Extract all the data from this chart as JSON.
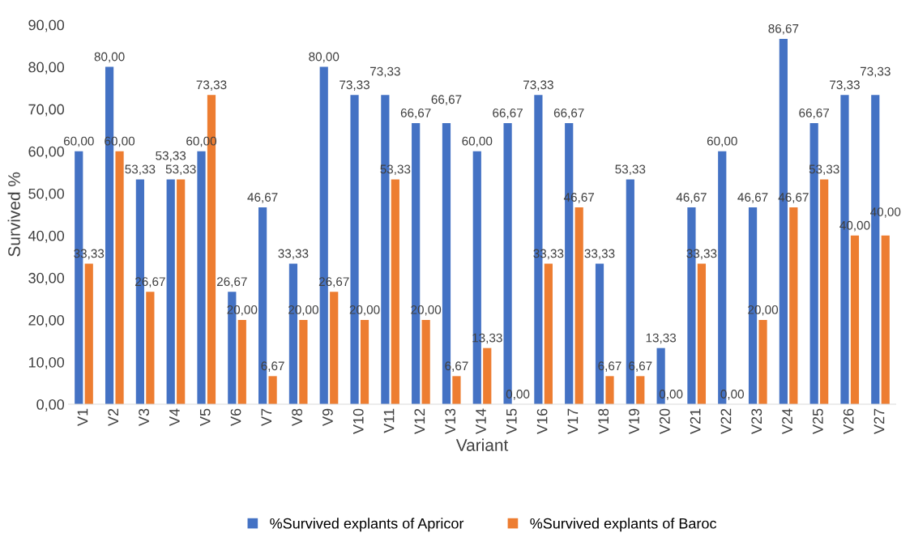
{
  "chart_data": {
    "type": "bar",
    "xlabel": "Variant",
    "ylabel": "Survived %",
    "categories": [
      "V1",
      "V2",
      "V3",
      "V4",
      "V5",
      "V6",
      "V7",
      "V8",
      "V9",
      "V10",
      "V11",
      "V12",
      "V13",
      "V14",
      "V15",
      "V16",
      "V17",
      "V18",
      "V19",
      "V20",
      "V21",
      "V22",
      "V23",
      "V24",
      "V25",
      "V26",
      "V27"
    ],
    "series": [
      {
        "name": "%Survived explants of Apricor",
        "color": "#4472c4",
        "values": [
          60,
          80,
          53.33,
          53.33,
          60,
          26.67,
          46.67,
          33.33,
          80,
          73.33,
          73.33,
          66.67,
          66.67,
          60,
          66.67,
          73.33,
          66.67,
          33.33,
          53.33,
          13.33,
          46.67,
          60,
          46.67,
          86.67,
          66.67,
          73.33,
          73.33
        ],
        "value_labels": [
          "60,00",
          "80,00",
          "53,33",
          "53,33",
          "60,00",
          "26,67",
          "46,67",
          "33,33",
          "80,00",
          "73,33",
          "73,33",
          "66,67",
          "66,67",
          "60,00",
          "66,67",
          "73,33",
          "66,67",
          "33,33",
          "53,33",
          "13,33",
          "46,67",
          "60,00",
          "46,67",
          "86,67",
          "66,67",
          "73,33",
          "73,33"
        ]
      },
      {
        "name": "%Survived explants of Baroc",
        "color": "#ed7d31",
        "values": [
          33.33,
          60,
          26.67,
          53.33,
          73.33,
          20,
          6.67,
          20,
          26.67,
          20,
          53.33,
          20,
          6.67,
          13.33,
          0,
          33.33,
          46.67,
          6.67,
          6.67,
          0,
          33.33,
          0,
          20,
          46.67,
          53.33,
          40,
          40
        ],
        "value_labels": [
          "33,33",
          "60,00",
          "26,67",
          "53,33",
          "73,33",
          "20,00",
          "6,67",
          "20,00",
          "26,67",
          "20,00",
          "53,33",
          "20,00",
          "6,67",
          "13,33",
          "0,00",
          "33,33",
          "46,67",
          "6,67",
          "6,67",
          "0,00",
          "33,33",
          "0,00",
          "20,00",
          "46,67",
          "53,33",
          "40,00",
          "40,00"
        ]
      }
    ],
    "ylim": [
      0,
      90
    ],
    "yticks": [
      {
        "value": 0,
        "label": "0,00"
      },
      {
        "value": 10,
        "label": "10,00"
      },
      {
        "value": 20,
        "label": "20,00"
      },
      {
        "value": 30,
        "label": "30,00"
      },
      {
        "value": 40,
        "label": "40,00"
      },
      {
        "value": 50,
        "label": "50,00"
      },
      {
        "value": 60,
        "label": "60,00"
      },
      {
        "value": 70,
        "label": "70,00"
      },
      {
        "value": 80,
        "label": "80,00"
      },
      {
        "value": 90,
        "label": "90,00"
      }
    ],
    "grid": false,
    "legend": "bottom"
  }
}
